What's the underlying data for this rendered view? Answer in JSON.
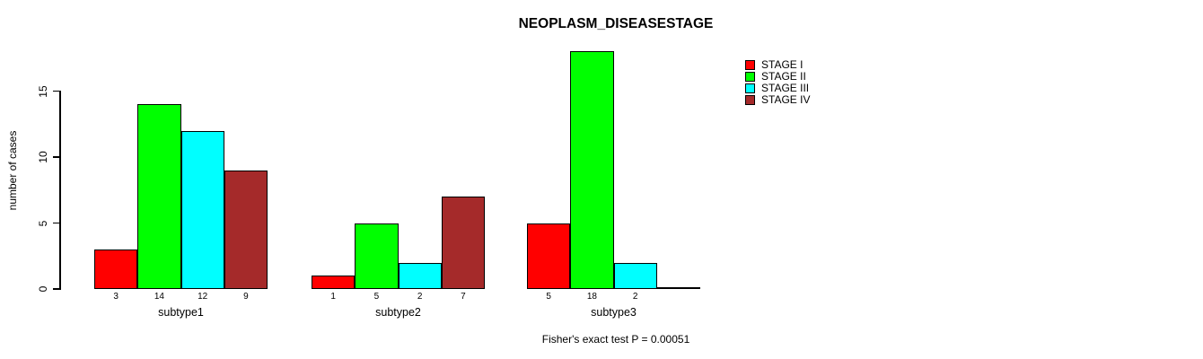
{
  "page": {
    "background": "#FFFFFF",
    "text_color": "#000000",
    "axis_color": "#000000"
  },
  "chart_data": {
    "type": "bar",
    "title": "NEOPLASM_DISEASESTAGE",
    "ylabel": "number of cases",
    "xlabel": "",
    "ylim": [
      0,
      18
    ],
    "yticks": [
      0,
      5,
      10,
      15
    ],
    "grid": false,
    "bar_value_labels": true,
    "legend_position": "top-right",
    "categories": [
      "subtype1",
      "subtype2",
      "subtype3"
    ],
    "series": [
      {
        "name": "STAGE I",
        "color": "#FF0000",
        "values": [
          3,
          1,
          5
        ]
      },
      {
        "name": "STAGE II",
        "color": "#00FF00",
        "values": [
          14,
          5,
          18
        ]
      },
      {
        "name": "STAGE III",
        "color": "#00FFFF",
        "values": [
          12,
          2,
          2
        ]
      },
      {
        "name": "STAGE IV",
        "color": "#A52A2A",
        "values": [
          9,
          7,
          0
        ]
      }
    ],
    "annotation": "Fisher's exact test P = 0.00051"
  }
}
